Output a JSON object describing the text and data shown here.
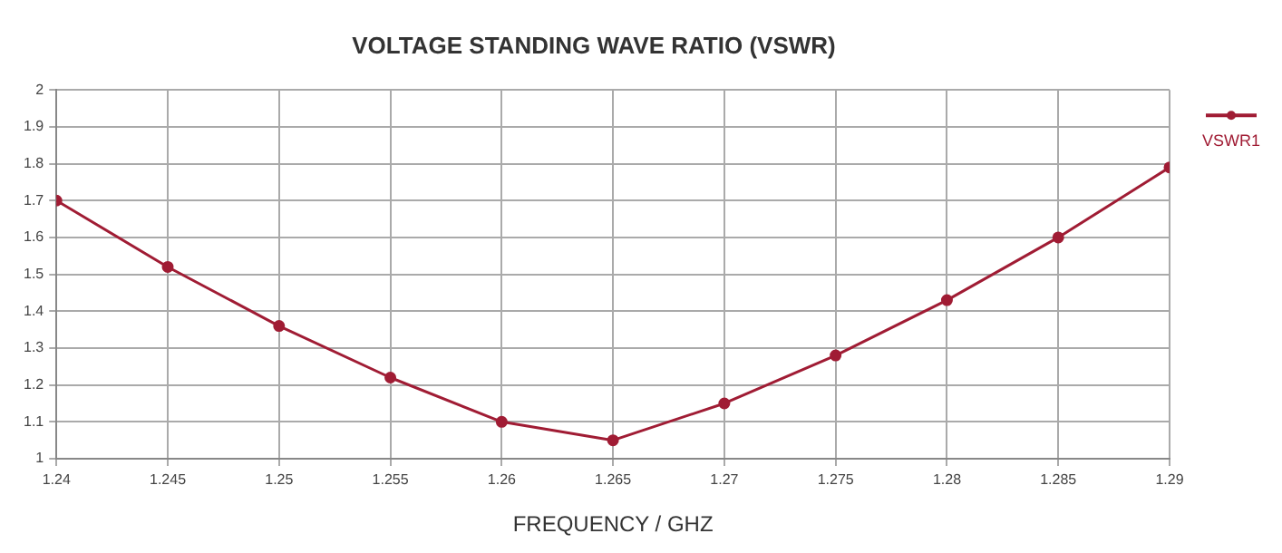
{
  "chart_data": {
    "type": "line",
    "title": "VOLTAGE STANDING WAVE RATIO (VSWR)",
    "xlabel": "FREQUENCY / GHZ",
    "x": [
      1.24,
      1.245,
      1.25,
      1.255,
      1.26,
      1.265,
      1.27,
      1.275,
      1.28,
      1.285,
      1.29
    ],
    "series": [
      {
        "name": "VSWR1",
        "color": "#a01c34",
        "values": [
          1.7,
          1.52,
          1.36,
          1.22,
          1.1,
          1.05,
          1.15,
          1.28,
          1.43,
          1.6,
          1.79
        ]
      }
    ],
    "xlim": [
      1.24,
      1.29
    ],
    "xticks": [
      1.24,
      1.245,
      1.25,
      1.255,
      1.26,
      1.265,
      1.27,
      1.275,
      1.28,
      1.285,
      1.29
    ],
    "ylim": [
      1,
      2
    ],
    "yticks": [
      1,
      1.1,
      1.2,
      1.3,
      1.4,
      1.5,
      1.6,
      1.7,
      1.8,
      1.9,
      2
    ],
    "grid": true,
    "legend": "top right",
    "marker": "circle",
    "line_style": "solid"
  }
}
